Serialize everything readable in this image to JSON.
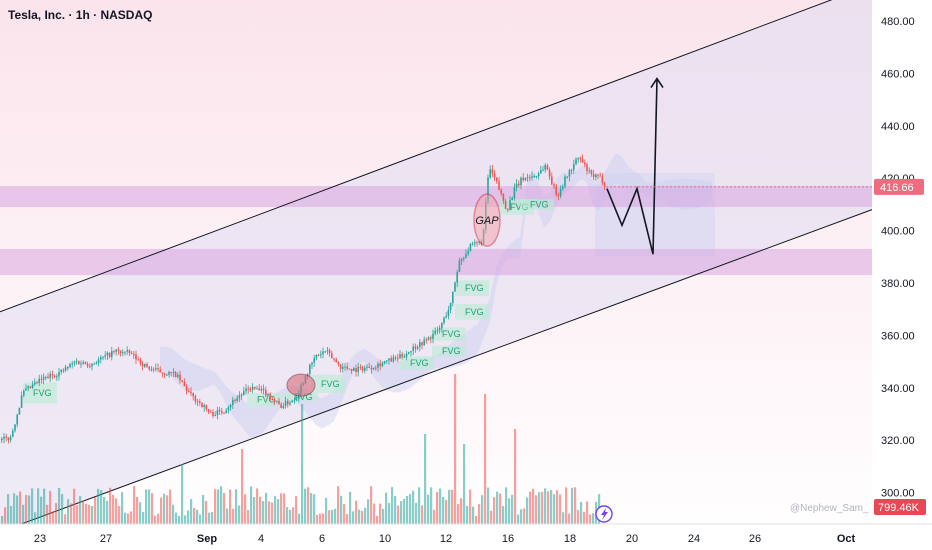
{
  "header": {
    "title": "Tesla, Inc. · 1h · NASDAQ"
  },
  "watermark": "@Nephew_Sam_",
  "colors": {
    "up": "#26a69a",
    "down": "#ef5350",
    "bg_top": "#fbe4ec",
    "zone": "#d9a6e0",
    "channel": "#e3ddf2",
    "cloud": "#c9cff0",
    "price_tag": "#f06a80",
    "volume_tag": "#e84855"
  },
  "chart_data": {
    "type": "candlestick",
    "ylim": [
      288,
      488
    ],
    "y_ticks": [
      300,
      320,
      340,
      360,
      380,
      400,
      420,
      440,
      460,
      480
    ],
    "y_tick_labels": [
      "300.00",
      "320.00",
      "340.00",
      "360.00",
      "380.00",
      "400.00",
      "420.00",
      "440.00",
      "460.00",
      "480.00"
    ],
    "x_ticks": [
      {
        "label": "23",
        "t": 40
      },
      {
        "label": "27",
        "t": 106
      },
      {
        "label": "Sep",
        "t": 207
      },
      {
        "label": "4",
        "t": 261
      },
      {
        "label": "6",
        "t": 322
      },
      {
        "label": "10",
        "t": 385
      },
      {
        "label": "12",
        "t": 446
      },
      {
        "label": "16",
        "t": 508
      },
      {
        "label": "18",
        "t": 570
      },
      {
        "label": "20",
        "t": 632
      },
      {
        "label": "24",
        "t": 694
      },
      {
        "label": "26",
        "t": 755
      },
      {
        "label": "Oct",
        "t": 846
      }
    ],
    "price_label": {
      "value": 416.66,
      "text": "416.66"
    },
    "volume_label": {
      "text": "799.46K"
    },
    "waypoints": [
      [
        0,
        320
      ],
      [
        10,
        321
      ],
      [
        22,
        338
      ],
      [
        40,
        343
      ],
      [
        60,
        346
      ],
      [
        75,
        350
      ],
      [
        90,
        349
      ],
      [
        105,
        352
      ],
      [
        115,
        354
      ],
      [
        130,
        353
      ],
      [
        145,
        348
      ],
      [
        160,
        346
      ],
      [
        175,
        345
      ],
      [
        190,
        337
      ],
      [
        200,
        334
      ],
      [
        210,
        330
      ],
      [
        222,
        331
      ],
      [
        235,
        336
      ],
      [
        250,
        340
      ],
      [
        265,
        338
      ],
      [
        280,
        333
      ],
      [
        295,
        336
      ],
      [
        305,
        345
      ],
      [
        315,
        352
      ],
      [
        325,
        354
      ],
      [
        340,
        348
      ],
      [
        355,
        347
      ],
      [
        370,
        348
      ],
      [
        385,
        350
      ],
      [
        395,
        351
      ],
      [
        405,
        353
      ],
      [
        415,
        356
      ],
      [
        425,
        358
      ],
      [
        438,
        362
      ],
      [
        450,
        372
      ],
      [
        458,
        388
      ],
      [
        470,
        394
      ],
      [
        482,
        396
      ],
      [
        488,
        424
      ],
      [
        496,
        418
      ],
      [
        506,
        408
      ],
      [
        514,
        416
      ],
      [
        522,
        420
      ],
      [
        535,
        421
      ],
      [
        545,
        425
      ],
      [
        556,
        413
      ],
      [
        566,
        421
      ],
      [
        578,
        428
      ],
      [
        590,
        421
      ],
      [
        600,
        420
      ],
      [
        606,
        417
      ]
    ],
    "zones": [
      {
        "low": 409,
        "high": 417
      },
      {
        "low": 383,
        "high": 393
      }
    ],
    "channel": {
      "upper": [
        {
          "t": 0,
          "p": 369
        },
        {
          "t": 845,
          "p": 490
        }
      ],
      "lower": [
        {
          "t": 0,
          "p": 285
        },
        {
          "t": 872,
          "p": 408
        }
      ]
    },
    "forecast_path": [
      [
        607,
        416
      ],
      [
        622,
        402
      ],
      [
        637,
        416
      ],
      [
        653,
        391
      ],
      [
        657,
        458
      ]
    ],
    "fvg_boxes": [
      {
        "label": "FVG",
        "t": 23,
        "lo": 334,
        "hi": 342
      },
      {
        "label": "FVG",
        "t": 247,
        "lo": 333,
        "hi": 338
      },
      {
        "label": "FVG",
        "t": 284,
        "lo": 335,
        "hi": 338
      },
      {
        "label": "FVG",
        "t": 311,
        "lo": 338,
        "hi": 345
      },
      {
        "label": "FVG",
        "t": 400,
        "lo": 347,
        "hi": 352
      },
      {
        "label": "FVG",
        "t": 432,
        "lo": 352,
        "hi": 356
      },
      {
        "label": "FVG",
        "t": 432,
        "lo": 358,
        "hi": 363
      },
      {
        "label": "FVG",
        "t": 455,
        "lo": 375,
        "hi": 381
      },
      {
        "label": "FVG",
        "t": 455,
        "lo": 366,
        "hi": 372
      },
      {
        "label": "FVG",
        "t": 500,
        "lo": 406,
        "hi": 412
      },
      {
        "label": "FVG",
        "t": 520,
        "lo": 408,
        "hi": 412
      }
    ],
    "annotations": [
      {
        "label": "GAP",
        "t": 487,
        "p": 404,
        "rx": 13,
        "ry": 26
      }
    ],
    "order_block": {
      "t": 301,
      "p": 341,
      "rx": 14,
      "ry": 11
    }
  }
}
